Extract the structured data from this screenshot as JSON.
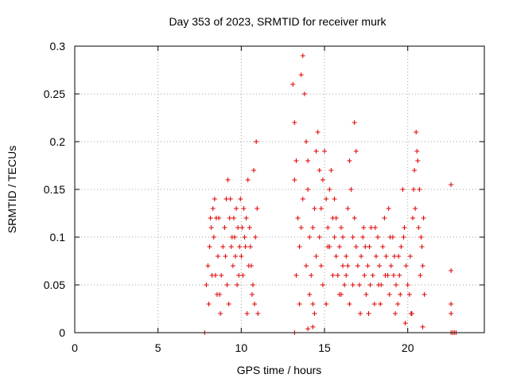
{
  "chart_data": {
    "type": "scatter",
    "title": "Day 353 of 2023, SRMTID for receiver murk",
    "xlabel": "GPS time / hours",
    "ylabel": "SRMTID / TECUs",
    "xlim": [
      0,
      24.6
    ],
    "ylim": [
      0,
      0.3
    ],
    "x_ticks": [
      0,
      5,
      10,
      15,
      20
    ],
    "y_ticks": [
      0,
      0.05,
      0.1,
      0.15,
      0.2,
      0.25,
      0.3
    ],
    "x_tick_labels": [
      "0",
      "5",
      "10",
      "15",
      "20"
    ],
    "y_tick_labels": [
      "0",
      "0.05",
      "0.1",
      "0.15",
      "0.2",
      "0.25",
      "0.3"
    ],
    "grid": true,
    "marker": "plus",
    "color": "#e00000",
    "series": [
      {
        "name": "SRMTID",
        "points": [
          [
            7.8,
            0.0
          ],
          [
            13.2,
            0.0
          ],
          [
            22.6,
            0.0
          ],
          [
            22.7,
            0.0
          ],
          [
            22.8,
            0.0
          ],
          [
            22.9,
            0.0
          ],
          [
            14.0,
            0.004
          ],
          [
            14.3,
            0.006
          ],
          [
            20.9,
            0.006
          ],
          [
            7.9,
            0.05
          ],
          [
            8.0,
            0.07
          ],
          [
            8.1,
            0.09
          ],
          [
            8.2,
            0.11
          ],
          [
            8.3,
            0.13
          ],
          [
            8.4,
            0.14
          ],
          [
            8.5,
            0.12
          ],
          [
            8.6,
            0.08
          ],
          [
            8.7,
            0.04
          ],
          [
            8.8,
            0.06
          ],
          [
            8.9,
            0.09
          ],
          [
            9.0,
            0.11
          ],
          [
            9.1,
            0.14
          ],
          [
            9.2,
            0.16
          ],
          [
            9.3,
            0.12
          ],
          [
            9.4,
            0.09
          ],
          [
            9.5,
            0.07
          ],
          [
            9.6,
            0.1
          ],
          [
            9.7,
            0.13
          ],
          [
            9.8,
            0.11
          ],
          [
            9.9,
            0.09
          ],
          [
            10.0,
            0.08
          ],
          [
            10.1,
            0.06
          ],
          [
            10.2,
            0.1
          ],
          [
            10.3,
            0.12
          ],
          [
            10.4,
            0.16
          ],
          [
            10.5,
            0.11
          ],
          [
            10.6,
            0.07
          ],
          [
            10.7,
            0.05
          ],
          [
            10.8,
            0.03
          ],
          [
            10.9,
            0.2
          ],
          [
            10.95,
            0.13
          ],
          [
            11.0,
            0.02
          ],
          [
            8.05,
            0.03
          ],
          [
            8.35,
            0.1
          ],
          [
            8.75,
            0.02
          ],
          [
            9.15,
            0.05
          ],
          [
            9.55,
            0.12
          ],
          [
            9.95,
            0.14
          ],
          [
            10.35,
            0.02
          ],
          [
            10.75,
            0.17
          ],
          [
            8.25,
            0.06
          ],
          [
            8.65,
            0.12
          ],
          [
            9.05,
            0.08
          ],
          [
            9.45,
            0.1
          ],
          [
            9.85,
            0.06
          ],
          [
            10.25,
            0.09
          ],
          [
            10.65,
            0.04
          ],
          [
            8.15,
            0.12
          ],
          [
            8.55,
            0.04
          ],
          [
            9.25,
            0.03
          ],
          [
            9.65,
            0.08
          ],
          [
            10.05,
            0.11
          ],
          [
            10.45,
            0.07
          ],
          [
            10.85,
            0.1
          ],
          [
            8.45,
            0.06
          ],
          [
            9.35,
            0.14
          ],
          [
            9.75,
            0.05
          ],
          [
            10.15,
            0.13
          ],
          [
            10.55,
            0.09
          ],
          [
            13.1,
            0.26
          ],
          [
            13.2,
            0.22
          ],
          [
            13.3,
            0.18
          ],
          [
            13.4,
            0.12
          ],
          [
            13.5,
            0.09
          ],
          [
            13.6,
            0.27
          ],
          [
            13.7,
            0.29
          ],
          [
            13.8,
            0.25
          ],
          [
            13.9,
            0.2
          ],
          [
            14.0,
            0.15
          ],
          [
            14.1,
            0.1
          ],
          [
            14.2,
            0.06
          ],
          [
            14.3,
            0.03
          ],
          [
            14.4,
            0.02
          ],
          [
            14.5,
            0.19
          ],
          [
            14.6,
            0.21
          ],
          [
            14.7,
            0.17
          ],
          [
            14.8,
            0.13
          ],
          [
            14.9,
            0.16
          ],
          [
            15.0,
            0.19
          ],
          [
            15.1,
            0.14
          ],
          [
            15.2,
            0.11
          ],
          [
            15.3,
            0.15
          ],
          [
            15.4,
            0.17
          ],
          [
            15.5,
            0.12
          ],
          [
            15.6,
            0.1
          ],
          [
            15.7,
            0.08
          ],
          [
            15.8,
            0.06
          ],
          [
            15.9,
            0.09
          ],
          [
            16.0,
            0.11
          ],
          [
            16.1,
            0.07
          ],
          [
            16.2,
            0.05
          ],
          [
            16.3,
            0.08
          ],
          [
            16.4,
            0.13
          ],
          [
            16.5,
            0.18
          ],
          [
            16.6,
            0.15
          ],
          [
            16.7,
            0.1
          ],
          [
            16.8,
            0.22
          ],
          [
            16.9,
            0.19
          ],
          [
            17.0,
            0.07
          ],
          [
            13.3,
            0.06
          ],
          [
            13.5,
            0.03
          ],
          [
            13.7,
            0.14
          ],
          [
            13.9,
            0.07
          ],
          [
            14.1,
            0.04
          ],
          [
            14.3,
            0.11
          ],
          [
            14.5,
            0.08
          ],
          [
            14.7,
            0.1
          ],
          [
            14.9,
            0.05
          ],
          [
            15.1,
            0.03
          ],
          [
            15.3,
            0.09
          ],
          [
            15.5,
            0.06
          ],
          [
            15.7,
            0.12
          ],
          [
            15.9,
            0.04
          ],
          [
            16.1,
            0.1
          ],
          [
            16.3,
            0.06
          ],
          [
            16.5,
            0.03
          ],
          [
            16.7,
            0.05
          ],
          [
            16.9,
            0.09
          ],
          [
            13.2,
            0.16
          ],
          [
            13.6,
            0.11
          ],
          [
            14.0,
            0.18
          ],
          [
            14.4,
            0.13
          ],
          [
            14.8,
            0.07
          ],
          [
            15.2,
            0.09
          ],
          [
            15.6,
            0.14
          ],
          [
            16.0,
            0.04
          ],
          [
            16.4,
            0.07
          ],
          [
            16.8,
            0.12
          ],
          [
            17.1,
            0.05
          ],
          [
            17.2,
            0.08
          ],
          [
            17.3,
            0.1
          ],
          [
            17.4,
            0.06
          ],
          [
            17.5,
            0.04
          ],
          [
            17.6,
            0.07
          ],
          [
            17.7,
            0.09
          ],
          [
            17.8,
            0.11
          ],
          [
            17.9,
            0.06
          ],
          [
            18.0,
            0.03
          ],
          [
            18.1,
            0.08
          ],
          [
            18.2,
            0.1
          ],
          [
            18.3,
            0.07
          ],
          [
            18.4,
            0.05
          ],
          [
            18.5,
            0.09
          ],
          [
            18.6,
            0.12
          ],
          [
            18.7,
            0.08
          ],
          [
            18.8,
            0.06
          ],
          [
            18.9,
            0.04
          ],
          [
            19.0,
            0.07
          ],
          [
            19.1,
            0.1
          ],
          [
            19.2,
            0.08
          ],
          [
            19.3,
            0.05
          ],
          [
            19.4,
            0.03
          ],
          [
            19.5,
            0.06
          ],
          [
            19.6,
            0.09
          ],
          [
            19.7,
            0.15
          ],
          [
            19.8,
            0.11
          ],
          [
            19.9,
            0.07
          ],
          [
            20.0,
            0.05
          ],
          [
            20.1,
            0.04
          ],
          [
            20.2,
            0.02
          ],
          [
            20.3,
            0.12
          ],
          [
            20.4,
            0.17
          ],
          [
            20.5,
            0.21
          ],
          [
            20.6,
            0.18
          ],
          [
            20.7,
            0.15
          ],
          [
            20.8,
            0.1
          ],
          [
            20.9,
            0.07
          ],
          [
            21.0,
            0.04
          ],
          [
            17.15,
            0.02
          ],
          [
            17.45,
            0.09
          ],
          [
            17.75,
            0.05
          ],
          [
            18.05,
            0.11
          ],
          [
            18.35,
            0.03
          ],
          [
            18.65,
            0.06
          ],
          [
            18.95,
            0.1
          ],
          [
            19.25,
            0.02
          ],
          [
            19.55,
            0.04
          ],
          [
            19.85,
            0.01
          ],
          [
            20.15,
            0.08
          ],
          [
            20.45,
            0.13
          ],
          [
            20.75,
            0.06
          ],
          [
            17.35,
            0.11
          ],
          [
            17.65,
            0.02
          ],
          [
            18.25,
            0.05
          ],
          [
            18.85,
            0.13
          ],
          [
            19.15,
            0.06
          ],
          [
            19.45,
            0.08
          ],
          [
            19.75,
            0.1
          ],
          [
            20.25,
            0.02
          ],
          [
            20.55,
            0.19
          ],
          [
            20.85,
            0.09
          ],
          [
            20.35,
            0.15
          ],
          [
            20.65,
            0.11
          ],
          [
            20.95,
            0.12
          ],
          [
            22.6,
            0.155
          ],
          [
            22.6,
            0.065
          ],
          [
            22.6,
            0.03
          ],
          [
            22.6,
            0.02
          ]
        ]
      }
    ]
  }
}
